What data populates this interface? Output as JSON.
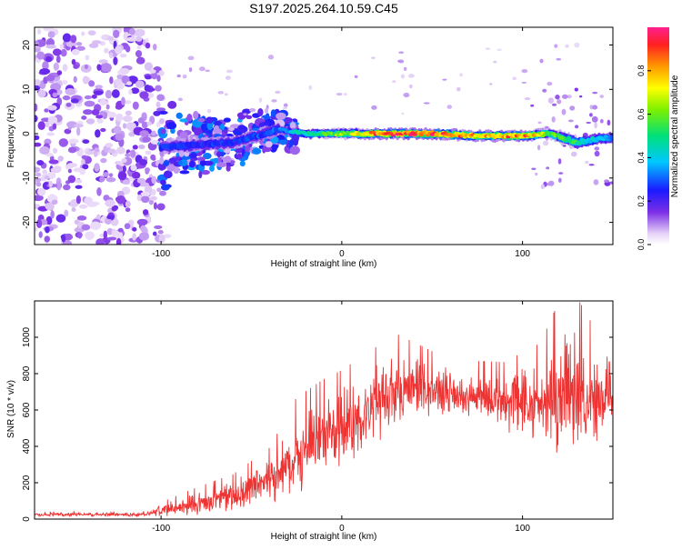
{
  "chart_data": [
    {
      "type": "heatmap",
      "title": "S197.2025.264.10.59.C45",
      "xlabel": "Height of straight line (km)",
      "ylabel": "Frequency (Hz)",
      "xlim": [
        -170,
        150
      ],
      "ylim": [
        -25,
        24
      ],
      "xticks": [
        -100,
        0,
        100
      ],
      "yticks": [
        -20,
        -10,
        0,
        10,
        20
      ],
      "colorbar": {
        "label": "Normalized spectral amplitude",
        "range": [
          0,
          1
        ],
        "ticks": [
          0.0,
          0.2,
          0.4,
          0.6,
          0.8
        ],
        "tick_labels": [
          "0.0",
          "0.2",
          "0.4",
          "0.6",
          "0.8"
        ]
      },
      "ridge": {
        "description_points": [
          {
            "x": -100,
            "freq": -3,
            "amp": 0.25
          },
          {
            "x": -60,
            "freq": -2,
            "amp": 0.25
          },
          {
            "x": -35,
            "freq": 1,
            "amp": 0.3
          },
          {
            "x": -20,
            "freq": 0,
            "amp": 0.45
          },
          {
            "x": 0,
            "freq": 0,
            "amp": 0.6
          },
          {
            "x": 20,
            "freq": 0,
            "amp": 0.85
          },
          {
            "x": 50,
            "freq": 0,
            "amp": 0.9
          },
          {
            "x": 75,
            "freq": -0.5,
            "amp": 0.75
          },
          {
            "x": 100,
            "freq": -0.5,
            "amp": 0.85
          },
          {
            "x": 115,
            "freq": 0,
            "amp": 0.6
          },
          {
            "x": 130,
            "freq": -2,
            "amp": 0.5
          },
          {
            "x": 145,
            "freq": -1,
            "amp": 0.35
          }
        ]
      }
    },
    {
      "type": "line",
      "xlabel": "Height of straight line (km)",
      "ylabel": "SNR (10 * v/v)",
      "xlim": [
        -170,
        150
      ],
      "ylim": [
        0,
        1200
      ],
      "xticks": [
        -100,
        0,
        100
      ],
      "yticks": [
        0,
        200,
        400,
        600,
        800,
        1000
      ],
      "series": [
        {
          "name": "SNR",
          "color": "#ee3333",
          "envelope": [
            {
              "x": -170,
              "mean": 25,
              "spread": 10
            },
            {
              "x": -110,
              "mean": 25,
              "spread": 10
            },
            {
              "x": -100,
              "mean": 45,
              "spread": 30
            },
            {
              "x": -80,
              "mean": 80,
              "spread": 60
            },
            {
              "x": -60,
              "mean": 120,
              "spread": 80
            },
            {
              "x": -40,
              "mean": 200,
              "spread": 120
            },
            {
              "x": -25,
              "mean": 350,
              "spread": 200
            },
            {
              "x": -10,
              "mean": 450,
              "spread": 200
            },
            {
              "x": 0,
              "mean": 500,
              "spread": 200
            },
            {
              "x": 15,
              "mean": 600,
              "spread": 200
            },
            {
              "x": 30,
              "mean": 700,
              "spread": 200
            },
            {
              "x": 50,
              "mean": 700,
              "spread": 140
            },
            {
              "x": 70,
              "mean": 680,
              "spread": 120
            },
            {
              "x": 90,
              "mean": 640,
              "spread": 140
            },
            {
              "x": 110,
              "mean": 650,
              "spread": 200
            },
            {
              "x": 125,
              "mean": 700,
              "spread": 380
            },
            {
              "x": 140,
              "mean": 650,
              "spread": 250
            },
            {
              "x": 150,
              "mean": 660,
              "spread": 100
            }
          ]
        }
      ]
    }
  ]
}
